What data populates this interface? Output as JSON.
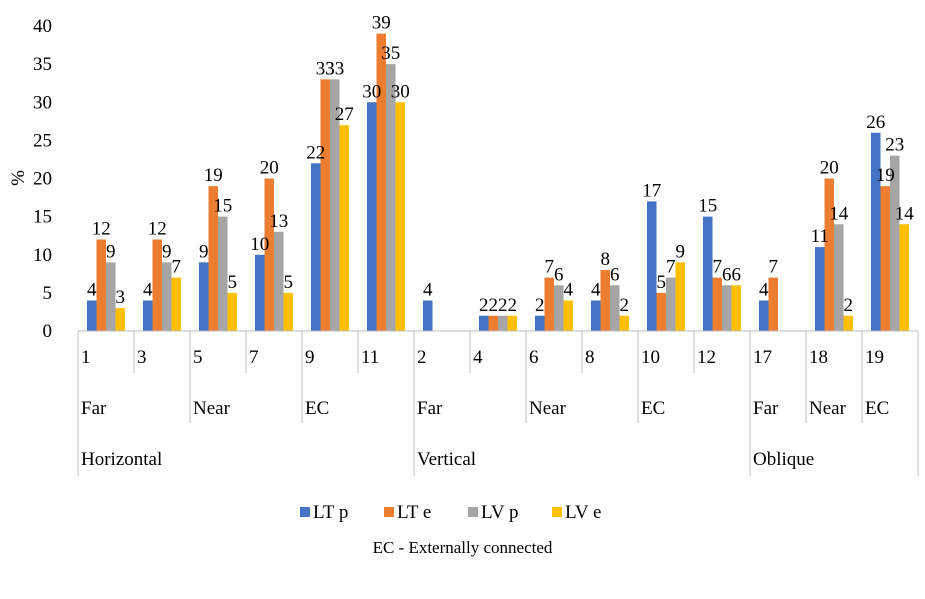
{
  "chart_data": {
    "type": "bar",
    "ylabel": "%",
    "ylim": [
      0,
      40
    ],
    "yticks": [
      0,
      5,
      10,
      15,
      20,
      25,
      30,
      35,
      40
    ],
    "grid": false,
    "legend_position": "bottom",
    "categories": [
      "1",
      "3",
      "5",
      "7",
      "9",
      "11",
      "2",
      "4",
      "6",
      "8",
      "10",
      "12",
      "17",
      "18",
      "19"
    ],
    "groups": [
      {
        "label": "Far",
        "start": 0,
        "count": 2
      },
      {
        "label": "Near",
        "start": 2,
        "count": 2
      },
      {
        "label": "EC",
        "start": 4,
        "count": 2
      },
      {
        "label": "Far",
        "start": 6,
        "count": 2
      },
      {
        "label": "Near",
        "start": 8,
        "count": 2
      },
      {
        "label": "EC",
        "start": 10,
        "count": 2
      },
      {
        "label": "Far",
        "start": 12,
        "count": 1
      },
      {
        "label": "Near",
        "start": 13,
        "count": 1
      },
      {
        "label": "EC",
        "start": 14,
        "count": 1
      }
    ],
    "supergroups": [
      {
        "label": "Horizontal",
        "start": 0,
        "count": 6
      },
      {
        "label": "Vertical",
        "start": 6,
        "count": 6
      },
      {
        "label": "Oblique",
        "start": 12,
        "count": 3
      }
    ],
    "series": [
      {
        "name": "LT p",
        "color": "#4472C4",
        "values": [
          4,
          4,
          9,
          10,
          22,
          30,
          4,
          2,
          2,
          4,
          17,
          15,
          4,
          11,
          26
        ]
      },
      {
        "name": "LT e",
        "color": "#ED7D31",
        "values": [
          12,
          12,
          19,
          20,
          33,
          39,
          0,
          2,
          7,
          8,
          5,
          7,
          7,
          20,
          19
        ]
      },
      {
        "name": "LV p",
        "color": "#A5A5A5",
        "values": [
          9,
          9,
          15,
          13,
          33,
          35,
          0,
          2,
          6,
          6,
          7,
          6,
          0,
          14,
          23
        ]
      },
      {
        "name": "LV e",
        "color": "#FFC000",
        "values": [
          3,
          7,
          5,
          5,
          27,
          30,
          0,
          2,
          4,
          2,
          9,
          6,
          0,
          2,
          14
        ]
      }
    ],
    "data_labels": [
      [
        "4",
        "4",
        "9",
        "10",
        "22",
        "30",
        "4",
        "2",
        "2",
        "4",
        "17",
        "15",
        "4",
        "11",
        "26"
      ],
      [
        "12",
        "12",
        "19",
        "20",
        "33",
        "39",
        "",
        "2",
        "7",
        "8",
        "5",
        "7",
        "7",
        "20",
        "19"
      ],
      [
        "9",
        "9",
        "15",
        "13",
        "33",
        "35",
        "",
        "2",
        "6",
        "6",
        "7",
        "6",
        "",
        "14",
        "23"
      ],
      [
        "3",
        "7",
        "5",
        "5",
        "27",
        "30",
        "",
        "2",
        "4",
        "2",
        "9",
        "6",
        "",
        "2",
        "14"
      ]
    ]
  },
  "footnote": "EC - Externally connected"
}
